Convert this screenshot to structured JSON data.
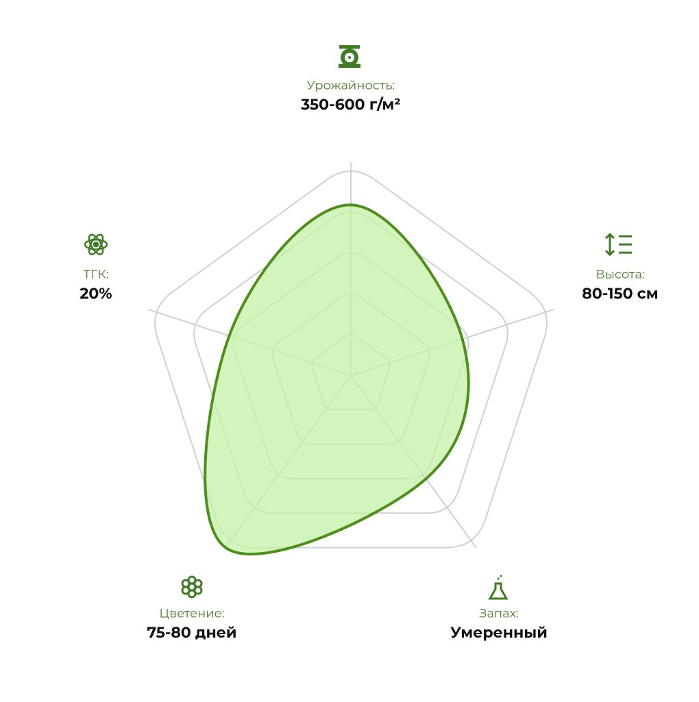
{
  "chart_data": {
    "type": "radar",
    "categories": [
      "Урожайность:",
      "Высота:",
      "Запах:",
      "Цветение:",
      "ТГК:"
    ],
    "details": [
      "350-600 г/м²",
      "80-150 см",
      "Умеренный",
      "75-80 дней",
      "20%"
    ],
    "values": [
      80,
      55,
      60,
      100,
      60
    ],
    "rlim": [
      0,
      100
    ],
    "rticks": [
      20,
      40,
      60,
      80,
      100
    ],
    "color": "#4e8f1b",
    "fill": "#c6f0a8",
    "grid": true
  }
}
